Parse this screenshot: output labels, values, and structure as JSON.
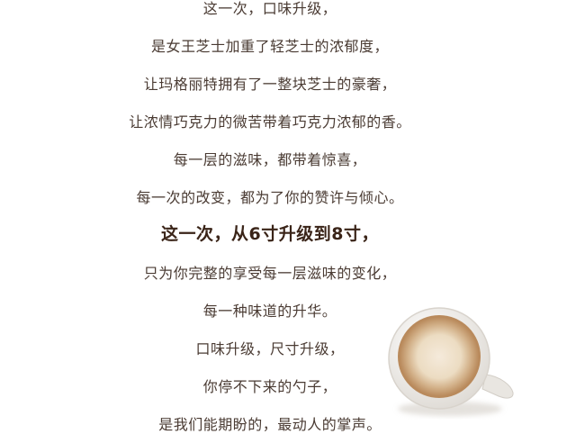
{
  "poem": {
    "lines": [
      "这一次，口味升级，",
      "是女王芝士加重了轻芝士的浓郁度，",
      "让玛格丽特拥有了一整块芝士的豪奢，",
      "让浓情巧克力的微苦带着巧克力浓郁的香。",
      "每一层的滋味，都带着惊喜，",
      "每一次的改变，都为了你的赞许与倾心。",
      "这一次，从6寸升级到8寸，",
      "只为你完整的享受每一层滋味的变化，",
      "每一种味道的升华。",
      "口味升级，尺寸升级，",
      "你停不下来的勺子，",
      "是我们能期盼的，最动人的掌声。"
    ]
  },
  "colors": {
    "text": "#4a3b33",
    "emphasis": "#3a2418",
    "coffee": "#b98a5c",
    "foam": "#ecdcc2"
  },
  "decoration": {
    "icon": "coffee-cup-icon"
  }
}
